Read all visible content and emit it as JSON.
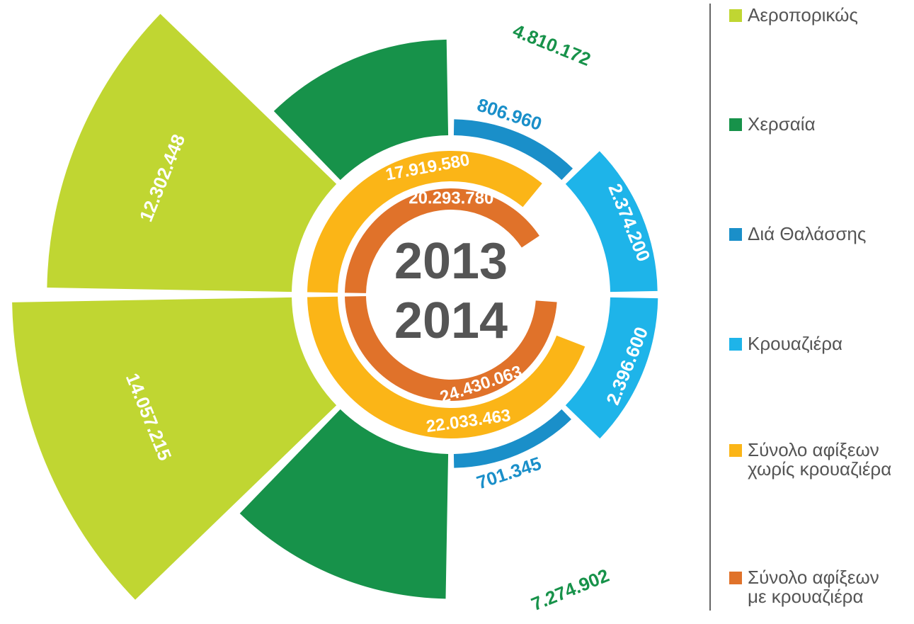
{
  "chart_data": {
    "type": "radial",
    "years": [
      "2013",
      "2014"
    ],
    "series": [
      {
        "name": "Αεροπορικώς",
        "color": "#c0d632",
        "values": [
          12302448,
          14057215
        ],
        "value_labels": [
          "12.302.448",
          "14.057.215"
        ]
      },
      {
        "name": "Χερσαία",
        "color": "#17924a",
        "values": [
          4810172,
          7274902
        ],
        "value_labels": [
          "4.810.172",
          "7.274.902"
        ]
      },
      {
        "name": "Διά Θαλάσσης",
        "color": "#1a8fc9",
        "values": [
          806960,
          701345
        ],
        "value_labels": [
          "806.960",
          "701.345"
        ]
      },
      {
        "name": "Κρουαζιέρα",
        "color": "#1eb4e9",
        "values": [
          2374200,
          2396600
        ],
        "value_labels": [
          "2.374.200",
          "2.396.600"
        ]
      },
      {
        "name": "Σύνολο αφίξεων\nχωρίς κρουαζιέρα",
        "color": "#fbb517",
        "values": [
          17919580,
          22033463
        ],
        "value_labels": [
          "17.919.580",
          "22.033.463"
        ]
      },
      {
        "name": "Σύνολο αφίξεων\nμε κρουαζιέρα",
        "color": "#e0722a",
        "values": [
          20293780,
          24430063
        ],
        "value_labels": [
          "20.293.780",
          "24.430.063"
        ]
      }
    ]
  }
}
